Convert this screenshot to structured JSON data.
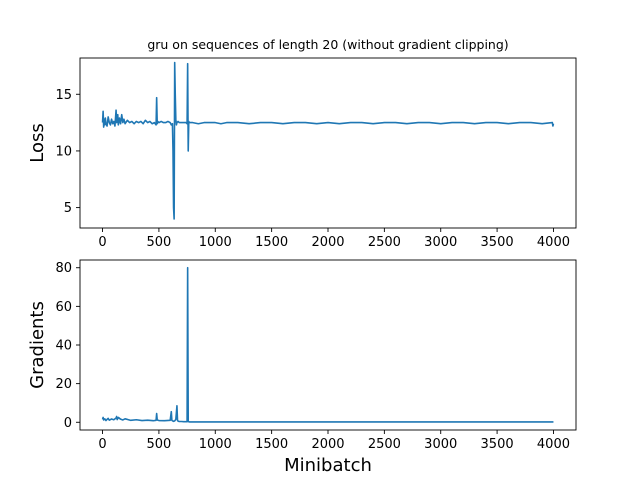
{
  "chart_data": [
    {
      "type": "line",
      "title": "gru on sequences of length 20 (without gradient clipping)",
      "xlabel": "",
      "ylabel": "Loss",
      "xlim": [
        -200,
        4200
      ],
      "ylim": [
        3.2,
        18.2
      ],
      "x_ticks": [
        0,
        500,
        1000,
        1500,
        2000,
        2500,
        3000,
        3500,
        4000
      ],
      "y_ticks": [
        5,
        10,
        15
      ],
      "grid": false,
      "color": "#1f77b4",
      "series": [
        {
          "x": [
            0,
            5,
            10,
            15,
            20,
            25,
            30,
            40,
            50,
            60,
            70,
            80,
            90,
            100,
            110,
            120,
            125,
            130,
            135,
            140,
            150,
            160,
            170,
            180,
            190,
            200,
            220,
            240,
            260,
            280,
            300,
            320,
            340,
            360,
            380,
            400,
            420,
            440,
            460,
            475,
            480,
            485,
            490,
            500,
            520,
            540,
            560,
            580,
            600,
            610,
            620,
            625,
            630,
            635,
            640,
            645,
            650,
            655,
            660,
            670,
            680,
            700,
            720,
            740,
            750,
            755,
            760,
            765,
            770,
            780,
            800,
            850,
            900,
            950,
            1000,
            1050,
            1100,
            1200,
            1300,
            1400,
            1500,
            1600,
            1700,
            1800,
            1900,
            2000,
            2100,
            2200,
            2300,
            2400,
            2500,
            2600,
            2700,
            2800,
            2900,
            3000,
            3100,
            3200,
            3300,
            3400,
            3500,
            3600,
            3700,
            3800,
            3900,
            3990,
            3995,
            4000
          ],
          "y": [
            12.5,
            13.5,
            12.1,
            12.8,
            12.3,
            12.9,
            12.4,
            12.2,
            13.0,
            12.5,
            12.3,
            12.8,
            12.4,
            12.6,
            12.2,
            13.6,
            12.5,
            12.9,
            13.2,
            12.3,
            12.9,
            12.4,
            13.2,
            12.5,
            12.8,
            12.4,
            12.7,
            12.5,
            12.6,
            12.4,
            12.6,
            12.5,
            12.6,
            12.4,
            12.7,
            12.5,
            12.6,
            12.4,
            12.5,
            12.3,
            14.7,
            12.4,
            12.6,
            12.5,
            12.6,
            12.5,
            12.5,
            12.6,
            12.5,
            12.3,
            12.4,
            10.0,
            5.0,
            4.0,
            17.8,
            15.0,
            12.8,
            12.3,
            12.5,
            12.6,
            12.5,
            12.5,
            12.5,
            12.5,
            12.4,
            17.7,
            10.0,
            12.6,
            12.5,
            12.5,
            12.5,
            12.4,
            12.5,
            12.5,
            12.5,
            12.4,
            12.5,
            12.5,
            12.4,
            12.5,
            12.5,
            12.4,
            12.5,
            12.5,
            12.4,
            12.5,
            12.4,
            12.5,
            12.5,
            12.4,
            12.5,
            12.5,
            12.4,
            12.5,
            12.5,
            12.4,
            12.5,
            12.5,
            12.4,
            12.5,
            12.5,
            12.4,
            12.5,
            12.5,
            12.4,
            12.5,
            12.2,
            12.4
          ]
        }
      ]
    },
    {
      "type": "line",
      "title": "",
      "xlabel": "Minibatch",
      "ylabel": "Gradients",
      "xlim": [
        -200,
        4200
      ],
      "ylim": [
        -4,
        84
      ],
      "x_ticks": [
        0,
        500,
        1000,
        1500,
        2000,
        2500,
        3000,
        3500,
        4000
      ],
      "y_ticks": [
        0,
        20,
        40,
        60,
        80
      ],
      "grid": false,
      "color": "#1f77b4",
      "series": [
        {
          "x": [
            0,
            5,
            10,
            20,
            30,
            40,
            50,
            60,
            80,
            100,
            120,
            125,
            130,
            140,
            160,
            180,
            200,
            250,
            300,
            350,
            400,
            450,
            475,
            480,
            485,
            500,
            550,
            600,
            610,
            615,
            620,
            625,
            630,
            640,
            650,
            660,
            665,
            670,
            680,
            700,
            720,
            740,
            750,
            755,
            760,
            762,
            765,
            770,
            800,
            900,
            1000,
            1500,
            2000,
            2500,
            3000,
            3500,
            4000
          ],
          "y": [
            1.5,
            2.5,
            1.2,
            1.8,
            0.9,
            1.5,
            2.0,
            1.1,
            1.7,
            1.3,
            2.2,
            3.0,
            1.4,
            2.5,
            1.6,
            1.2,
            1.8,
            1.0,
            1.3,
            0.9,
            1.1,
            0.8,
            1.0,
            4.5,
            1.2,
            0.9,
            0.8,
            1.0,
            5.5,
            1.0,
            0.8,
            0.6,
            0.5,
            0.7,
            1.5,
            8.5,
            1.0,
            0.6,
            0.4,
            0.4,
            0.3,
            0.3,
            0.3,
            80.0,
            0.5,
            0.3,
            0.3,
            0.2,
            0.2,
            0.2,
            0.2,
            0.2,
            0.2,
            0.2,
            0.2,
            0.2,
            0.2
          ]
        }
      ]
    }
  ]
}
